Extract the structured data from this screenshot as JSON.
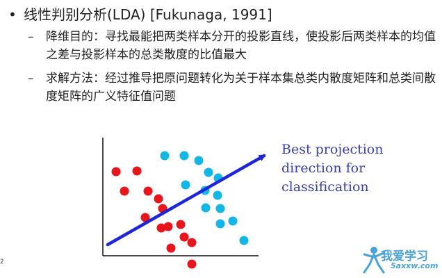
{
  "bullet_main": "线性判别分析(LDA) [Fukunaga, 1991]",
  "sub1": {
    "dash": "–",
    "text": "降维目的：寻找最能把两类样本分开的投影直线，使投影后两类样本的均值之差与投影样本的总类散度的比值最大"
  },
  "sub2": {
    "dash": "–",
    "text": "求解方法：经过推导把原问题转化为关于样本集总类内散度矩阵和总类间散度矩阵的广义特征值问题"
  },
  "caption": {
    "line1": "Best projection",
    "line2": "direction for",
    "line3": "classification"
  },
  "page_num": "2",
  "watermark": {
    "cn": "我爱学习",
    "en": "5axxw.com"
  },
  "colors": {
    "class_red": "#e8151b",
    "class_cyan": "#12b7e6",
    "arrow": "#1f26d9",
    "caption": "#3a3fa8"
  }
}
